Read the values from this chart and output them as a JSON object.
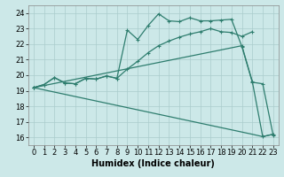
{
  "bg_color": "#cce8e8",
  "line_color": "#2e7d6e",
  "grid_color": "#aacccc",
  "xlabel": "Humidex (Indice chaleur)",
  "xlabel_fontsize": 7,
  "tick_fontsize": 6,
  "xlim": [
    -0.5,
    23.5
  ],
  "ylim": [
    15.5,
    24.5
  ],
  "yticks": [
    16,
    17,
    18,
    19,
    20,
    21,
    22,
    23,
    24
  ],
  "xticks": [
    0,
    1,
    2,
    3,
    4,
    5,
    6,
    7,
    8,
    9,
    10,
    11,
    12,
    13,
    14,
    15,
    16,
    17,
    18,
    19,
    20,
    21,
    22,
    23
  ],
  "curve1_x": [
    0,
    1,
    2,
    3,
    4,
    5,
    6,
    7,
    8,
    9,
    10,
    11,
    12,
    13,
    14,
    15,
    16,
    17,
    18,
    19,
    20,
    21
  ],
  "curve1_y": [
    19.2,
    19.4,
    19.85,
    19.5,
    19.45,
    19.8,
    19.75,
    19.95,
    19.8,
    20.4,
    20.9,
    21.45,
    21.9,
    22.2,
    22.45,
    22.65,
    22.8,
    23.0,
    22.8,
    22.75,
    22.5,
    22.8
  ],
  "curve2_x": [
    0,
    1,
    2,
    3,
    4,
    5,
    6,
    7,
    8,
    9,
    10,
    11,
    12,
    13,
    14,
    15,
    16,
    17,
    18,
    19,
    20,
    21,
    22,
    23
  ],
  "curve2_y": [
    19.2,
    19.4,
    19.85,
    19.5,
    19.45,
    19.8,
    19.75,
    19.95,
    19.8,
    22.9,
    22.3,
    23.2,
    23.95,
    23.5,
    23.45,
    23.7,
    23.5,
    23.5,
    23.55,
    23.6,
    21.85,
    19.55,
    19.45,
    16.15
  ],
  "curve3_x": [
    0,
    21,
    22,
    23
  ],
  "curve3_y": [
    19.2,
    16.2,
    16.05,
    16.2
  ],
  "curve4_x": [
    0,
    20,
    21,
    22,
    23
  ],
  "curve4_y": [
    19.2,
    21.9,
    19.6,
    16.05,
    16.2
  ]
}
